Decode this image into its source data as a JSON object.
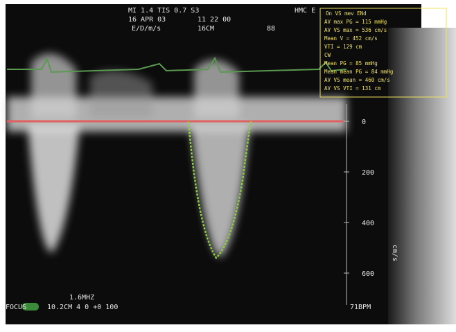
{
  "header": {
    "line1": "MI 1.4 TIS 0.7 S3",
    "site": "HMC E",
    "date": "16 APR 03",
    "time": "11 22 00",
    "line3": "E/D/m/s",
    "depth": "16CM",
    "frame": "88"
  },
  "measurements": {
    "title": "On VS  mev ENd",
    "items": [
      "AV max PG = 115 mmHg",
      "AV VS max = 536 cm/s",
      "Mean V = 452 cm/s",
      "VTI = 129 cm",
      "CW",
      "Mean PG = 85 mmHg",
      "Mean mean PG = 84 mmHg",
      "AV VS mean = 460 cm/s",
      "AV VS VTI = 131 cm"
    ]
  },
  "scale": {
    "labels": [
      "0",
      "200",
      "400",
      "600"
    ],
    "unit": "cm/s"
  },
  "footer": {
    "frequency": "1.6MHZ",
    "focus": "FOCUS",
    "settings": "10.2CM   4   0   +0 100",
    "heart_rate": "71BPM"
  }
}
